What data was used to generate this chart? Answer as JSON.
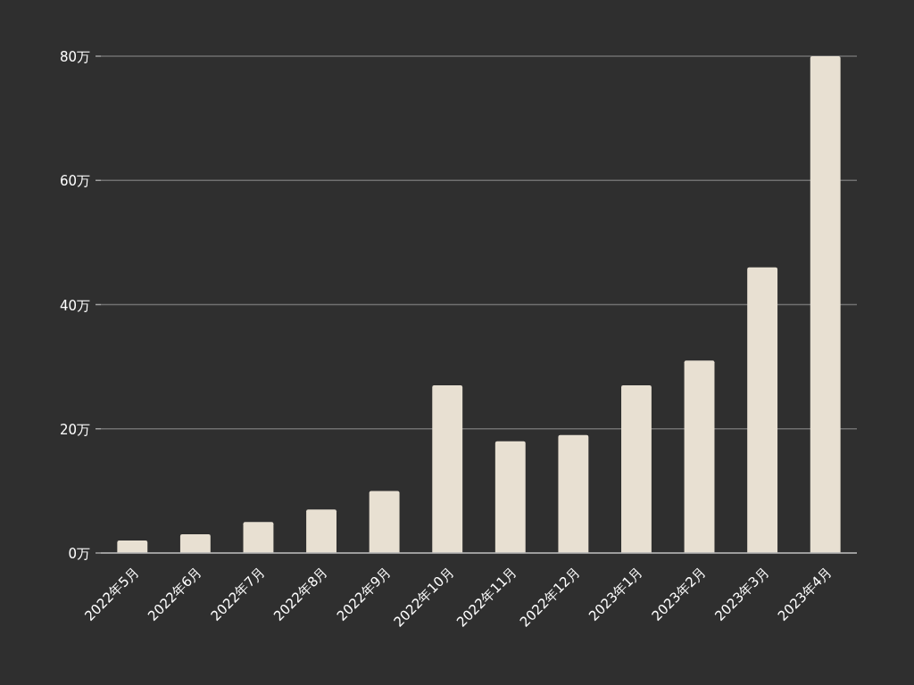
{
  "chart_data": {
    "type": "bar",
    "categories": [
      "2022年5月",
      "2022年6月",
      "2022年7月",
      "2022年8月",
      "2022年9月",
      "2022年10月",
      "2022年11月",
      "2022年12月",
      "2023年1月",
      "2023年2月",
      "2023年3月",
      "2023年4月"
    ],
    "values": [
      2,
      3,
      5,
      7,
      10,
      27,
      18,
      19,
      27,
      31,
      46,
      80
    ],
    "color": "#e8e0d2",
    "ylim": [
      0,
      80
    ],
    "yticks": [
      {
        "value": 0,
        "label": "0万"
      },
      {
        "value": 20,
        "label": "20万"
      },
      {
        "value": 40,
        "label": "40万"
      },
      {
        "value": 60,
        "label": "60万"
      },
      {
        "value": 80,
        "label": "80万"
      }
    ],
    "grid": "y"
  }
}
